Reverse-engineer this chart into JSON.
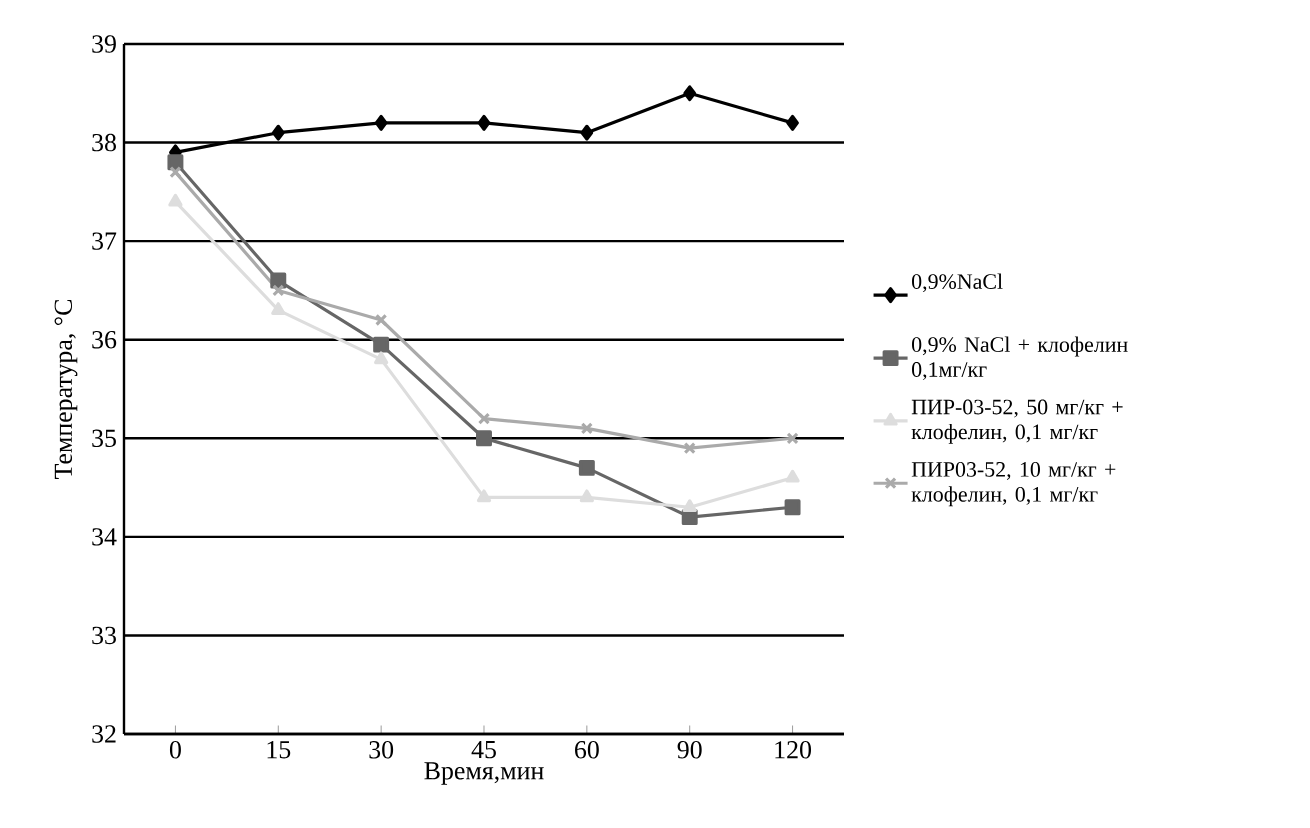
{
  "chart_data": {
    "type": "line",
    "xlabel": "Время,мин",
    "ylabel": "Температура, °C",
    "categories": [
      "0",
      "15",
      "30",
      "45",
      "60",
      "90",
      "120"
    ],
    "ylim": [
      32,
      39
    ],
    "yticks": [
      32,
      33,
      34,
      35,
      36,
      37,
      38,
      39
    ],
    "grid": "y",
    "legend": "right",
    "series": [
      {
        "name": "0,9%NaCl",
        "color": "#000000",
        "marker": "diamond",
        "values": [
          37.9,
          38.1,
          38.2,
          38.2,
          38.1,
          38.5,
          38.2
        ]
      },
      {
        "name": "0,9% NaCl + клофелин 0,1мг/кг",
        "color": "#666666",
        "marker": "square",
        "values": [
          37.8,
          36.6,
          35.95,
          35.0,
          34.7,
          34.2,
          34.3
        ]
      },
      {
        "name": "ПИР-03-52, 50 мг/кг + клофелин, 0,1 мг/кг",
        "color": "#dddddd",
        "marker": "triangle",
        "values": [
          37.4,
          36.3,
          35.8,
          34.4,
          34.4,
          34.3,
          34.6
        ]
      },
      {
        "name": "ПИР03-52, 10 мг/кг + клофелин, 0,1 мг/кг",
        "color": "#aaaaaa",
        "marker": "cross",
        "values": [
          37.7,
          36.5,
          36.2,
          35.2,
          35.1,
          34.9,
          35.0
        ]
      }
    ]
  }
}
